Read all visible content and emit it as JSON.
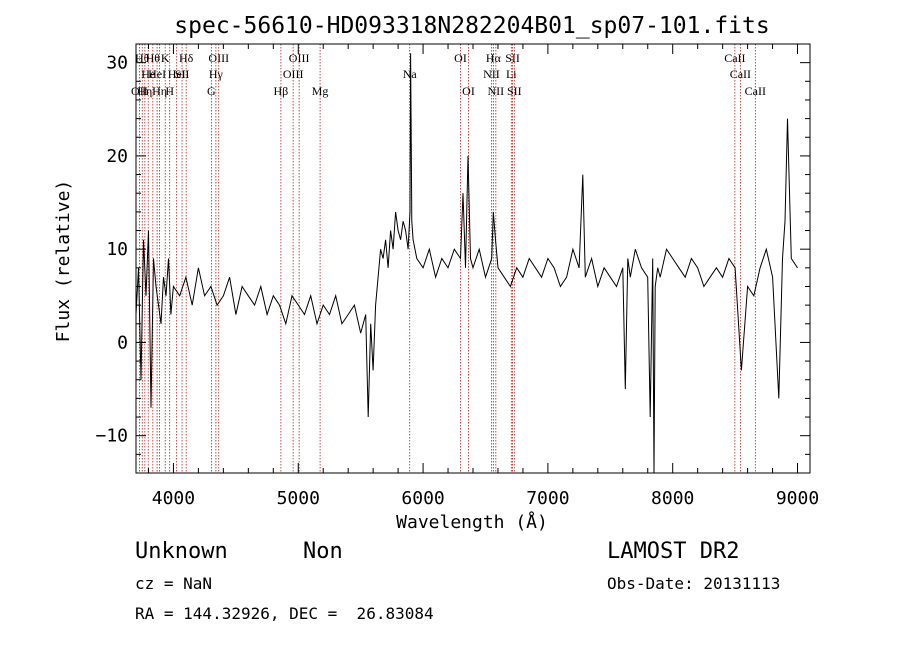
{
  "chart_data": {
    "type": "line",
    "title": "spec-56610-HD093318N282204B01_sp07-101.fits",
    "xlabel": "Wavelength (Å)",
    "ylabel": "Flux (relative)",
    "xlim": [
      3700,
      9100
    ],
    "ylim": [
      -14,
      32
    ],
    "xticks": [
      4000,
      5000,
      6000,
      7000,
      8000,
      9000
    ],
    "yticks": [
      -10,
      0,
      10,
      20,
      30
    ],
    "ytick_labels": [
      "−10",
      "0",
      "10",
      "20",
      "30"
    ],
    "grid": false,
    "series": [
      {
        "x": [
          3700,
          3720,
          3740,
          3760,
          3780,
          3800,
          3820,
          3840,
          3860,
          3880,
          3900,
          3920,
          3940,
          3960,
          3980,
          4000,
          4050,
          4100,
          4150,
          4200,
          4250,
          4300,
          4350,
          4400,
          4450,
          4500,
          4550,
          4600,
          4650,
          4700,
          4750,
          4800,
          4850,
          4900,
          4950,
          5000,
          5050,
          5100,
          5150,
          5200,
          5250,
          5300,
          5350,
          5400,
          5450,
          5500,
          5540,
          5560,
          5580,
          5600,
          5620,
          5640,
          5660,
          5680,
          5700,
          5720,
          5740,
          5760,
          5780,
          5800,
          5820,
          5840,
          5860,
          5880,
          5895,
          5900,
          5910,
          5920,
          5950,
          6000,
          6050,
          6100,
          6150,
          6200,
          6250,
          6300,
          6320,
          6340,
          6360,
          6380,
          6400,
          6450,
          6500,
          6550,
          6563,
          6580,
          6600,
          6650,
          6700,
          6750,
          6800,
          6850,
          6900,
          6950,
          7000,
          7050,
          7100,
          7150,
          7200,
          7250,
          7280,
          7300,
          7350,
          7400,
          7450,
          7500,
          7550,
          7600,
          7620,
          7640,
          7660,
          7700,
          7750,
          7800,
          7820,
          7840,
          7850,
          7860,
          7880,
          7900,
          7950,
          8000,
          8050,
          8100,
          8150,
          8200,
          8250,
          8300,
          8350,
          8400,
          8450,
          8500,
          8550,
          8600,
          8650,
          8700,
          8750,
          8800,
          8850,
          8880,
          8900,
          8920,
          8950,
          9000
        ],
        "y": [
          3,
          8,
          -4,
          11,
          5,
          12,
          -7,
          9,
          6,
          4,
          2,
          7,
          5,
          9,
          3,
          6,
          5,
          7,
          4,
          8,
          5,
          6,
          4,
          5,
          7,
          3,
          6,
          5,
          4,
          6,
          3,
          5,
          4,
          2,
          5,
          4,
          3,
          5,
          2,
          4,
          3,
          5,
          2,
          3,
          4,
          1,
          3,
          -8,
          2,
          -3,
          4,
          7,
          10,
          9,
          11,
          8,
          12,
          10,
          14,
          12,
          11,
          13,
          12,
          10,
          14,
          31,
          13,
          11,
          9,
          8,
          10,
          7,
          9,
          8,
          10,
          9,
          16,
          8,
          20,
          9,
          8,
          10,
          7,
          9,
          14,
          11,
          8,
          7,
          6,
          8,
          7,
          9,
          8,
          7,
          9,
          8,
          6,
          7,
          10,
          8,
          18,
          7,
          9,
          6,
          8,
          7,
          6,
          8,
          -5,
          9,
          7,
          10,
          8,
          7,
          -8,
          9,
          -14,
          6,
          8,
          7,
          10,
          9,
          8,
          7,
          9,
          8,
          6,
          7,
          8,
          7,
          9,
          8,
          -3,
          6,
          5,
          8,
          10,
          7,
          -6,
          9,
          13,
          24,
          9,
          8
        ]
      }
    ],
    "line_markers": [
      {
        "wavelength": 3727,
        "label": "OII",
        "row": 3
      },
      {
        "wavelength": 3750,
        "label": "Hθ",
        "row": 1
      },
      {
        "wavelength": 3771,
        "label": "Hη",
        "row": 3
      },
      {
        "wavelength": 3798,
        "label": "He",
        "row": 2
      },
      {
        "wavelength": 3835,
        "label": "Hθ",
        "row": 1
      },
      {
        "wavelength": 3869,
        "label": "HeI",
        "row": 2
      },
      {
        "wavelength": 3889,
        "label": "Hη",
        "row": 3
      },
      {
        "wavelength": 3934,
        "label": "K",
        "row": 1
      },
      {
        "wavelength": 3970,
        "label": "H",
        "row": 3
      },
      {
        "wavelength": 4026,
        "label": "HeI",
        "row": 2
      },
      {
        "wavelength": 4069,
        "label": "SII",
        "row": 2
      },
      {
        "wavelength": 4102,
        "label": "Hδ",
        "row": 1
      },
      {
        "wavelength": 4304,
        "label": "G",
        "row": 3
      },
      {
        "wavelength": 4340,
        "label": "Hγ",
        "row": 2
      },
      {
        "wavelength": 4363,
        "label": "OIII",
        "row": 1
      },
      {
        "wavelength": 4861,
        "label": "Hβ",
        "row": 3
      },
      {
        "wavelength": 4959,
        "label": "OIII",
        "row": 2
      },
      {
        "wavelength": 5007,
        "label": "OIII",
        "row": 1
      },
      {
        "wavelength": 5175,
        "label": "Mg",
        "row": 3
      },
      {
        "wavelength": 5893,
        "label": "Na",
        "row": 2
      },
      {
        "wavelength": 6300,
        "label": "OI",
        "row": 1
      },
      {
        "wavelength": 6364,
        "label": "OI",
        "row": 3
      },
      {
        "wavelength": 6548,
        "label": "NII",
        "row": 2
      },
      {
        "wavelength": 6563,
        "label": "Hα",
        "row": 1
      },
      {
        "wavelength": 6583,
        "label": "NII",
        "row": 3
      },
      {
        "wavelength": 6707,
        "label": "Li",
        "row": 2
      },
      {
        "wavelength": 6717,
        "label": "SII",
        "row": 1
      },
      {
        "wavelength": 6731,
        "label": "SII",
        "row": 3
      },
      {
        "wavelength": 8498,
        "label": "CaII",
        "row": 1
      },
      {
        "wavelength": 8542,
        "label": "CaII",
        "row": 2
      },
      {
        "wavelength": 8662,
        "label": "CaII",
        "row": 3
      }
    ],
    "colors": {
      "spectrum": "#000000",
      "line_markers": "#b22222",
      "axes": "#000000"
    }
  },
  "info": {
    "class_label": "Unknown",
    "subclass_label": "Non",
    "cz": "cz = NaN",
    "coords": "RA = 144.32926, DEC =  26.83084",
    "survey": "LAMOST DR2",
    "obs_date": "Obs-Date: 20131113"
  }
}
